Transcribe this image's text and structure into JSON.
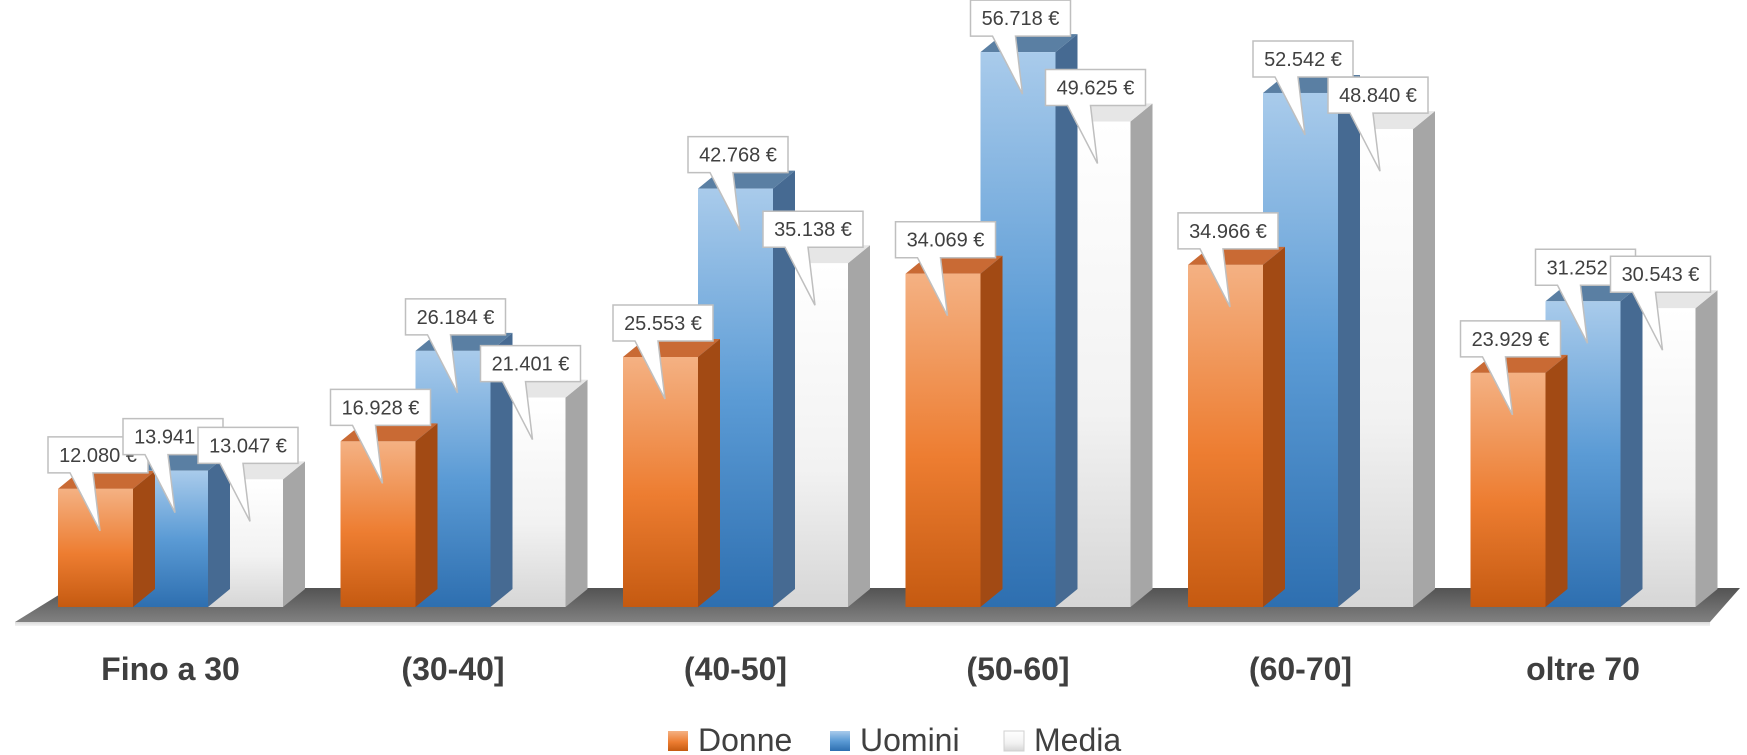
{
  "chart_data": {
    "type": "bar",
    "title": "",
    "xlabel": "",
    "ylabel": "",
    "ylim": [
      0,
      60000
    ],
    "grid": false,
    "legend_position": "bottom",
    "categories": [
      "Fino a 30",
      "(30-40]",
      "(40-50]",
      "(50-60]",
      "(60-70]",
      "oltre 70"
    ],
    "series": [
      {
        "name": "Donne",
        "color": "#ED7D31",
        "values": [
          12080,
          16928,
          25553,
          34069,
          34966,
          23929
        ],
        "labels": [
          "12.080 €",
          "16.928 €",
          "25.553 €",
          "34.069 €",
          "34.966 €",
          "23.929 €"
        ]
      },
      {
        "name": "Uomini",
        "color": "#5B9BD5",
        "values": [
          13941,
          26184,
          42768,
          56718,
          52542,
          31252
        ],
        "labels": [
          "13.941 €",
          "26.184 €",
          "42.768 €",
          "56.718 €",
          "52.542 €",
          "31.252 €"
        ]
      },
      {
        "name": "Media",
        "color": "#F2F2F2",
        "values": [
          13047,
          21401,
          35138,
          49625,
          48840,
          30543
        ],
        "labels": [
          "13.047 €",
          "21.401 €",
          "35.138 €",
          "49.625 €",
          "48.840 €",
          "30.543 €"
        ]
      }
    ]
  }
}
